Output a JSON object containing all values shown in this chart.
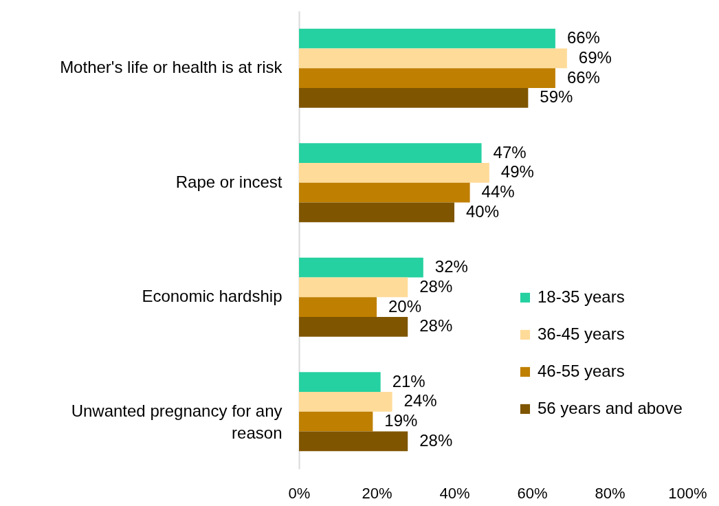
{
  "chart_data": {
    "type": "bar",
    "orientation": "horizontal",
    "categories": [
      "Mother's life or health is at risk",
      "Rape or incest",
      "Economic hardship",
      "Unwanted pregnancy for any reason"
    ],
    "series": [
      {
        "name": "18-35 years",
        "color": "#25d1a0",
        "values": [
          66,
          47,
          32,
          21
        ],
        "value_labels": [
          "66%",
          "47%",
          "32%",
          "21%"
        ]
      },
      {
        "name": "36-45 years",
        "color": "#ffdb99",
        "values": [
          69,
          49,
          28,
          24
        ],
        "value_labels": [
          "69%",
          "49%",
          "28%",
          "24%"
        ]
      },
      {
        "name": "46-55 years",
        "color": "#bf7f00",
        "values": [
          66,
          44,
          20,
          19
        ],
        "value_labels": [
          "66%",
          "44%",
          "20%",
          "19%"
        ]
      },
      {
        "name": "56 years and above",
        "color": "#7f5500",
        "values": [
          59,
          40,
          28,
          28
        ],
        "value_labels": [
          "59%",
          "40%",
          "28%",
          "28%"
        ]
      }
    ],
    "xlim": [
      0,
      100
    ],
    "xticks": [
      {
        "value": 0,
        "label": "0%"
      },
      {
        "value": 20,
        "label": "20%"
      },
      {
        "value": 40,
        "label": "40%"
      },
      {
        "value": 60,
        "label": "60%"
      },
      {
        "value": 80,
        "label": "80%"
      },
      {
        "value": 100,
        "label": "100%"
      }
    ],
    "grid": false,
    "legend": "bottom right"
  }
}
